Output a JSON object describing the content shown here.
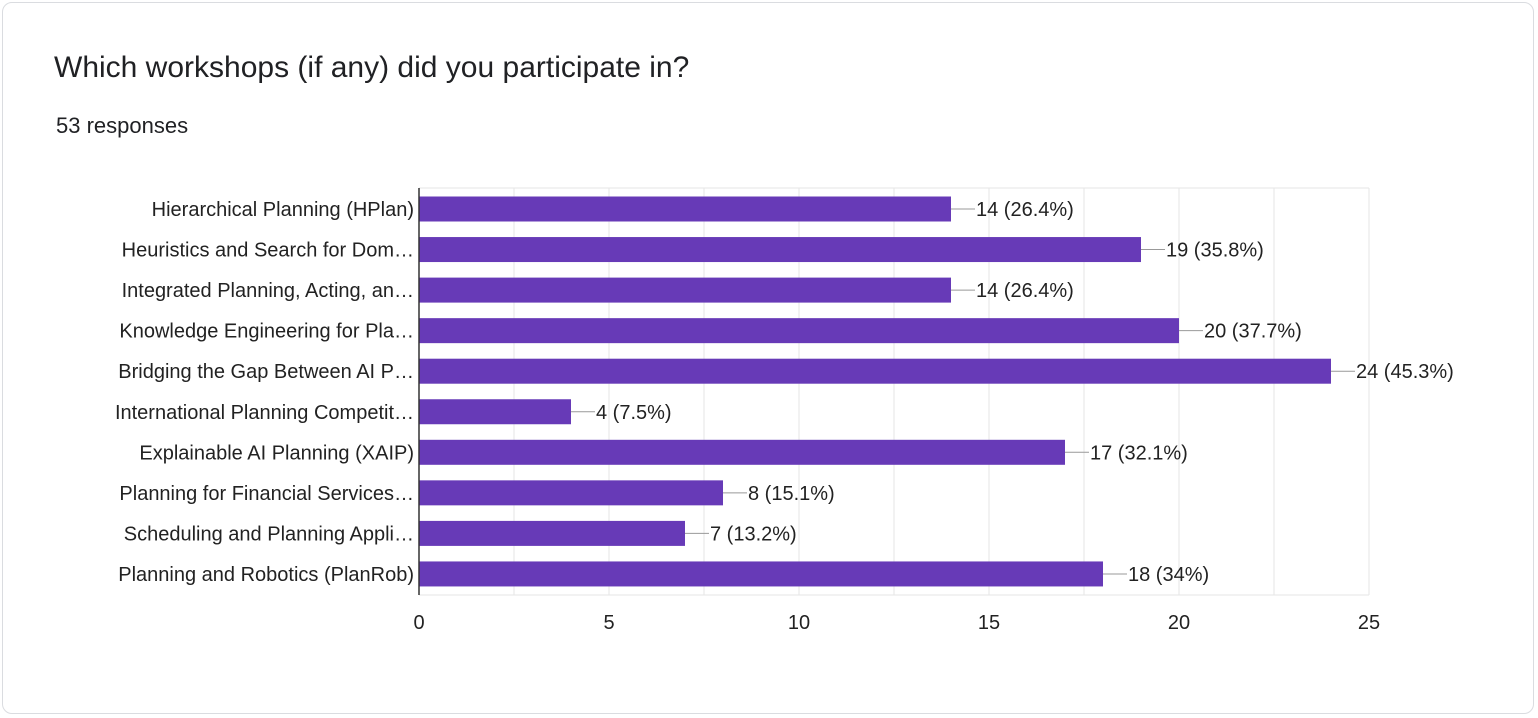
{
  "question": {
    "title": "Which workshops (if any) did you participate in?",
    "response_count": "53 responses"
  },
  "colors": {
    "bar": "#673ab7",
    "grid": "#e6e6e6",
    "axis": "#333333",
    "text": "#222222"
  },
  "chart_data": {
    "type": "bar",
    "orientation": "horizontal",
    "categories": [
      "Hierarchical Planning (HPlan)",
      "Heuristics and Search for Dom…",
      "Integrated Planning, Acting, an…",
      "Knowledge Engineering for Pla…",
      "Bridging the Gap Between AI P…",
      "International Planning Competit…",
      "Explainable AI Planning (XAIP)",
      "Planning for Financial Services…",
      "Scheduling and Planning Appli…",
      "Planning and Robotics (PlanRob)"
    ],
    "values": [
      14,
      19,
      14,
      20,
      24,
      4,
      17,
      8,
      7,
      18
    ],
    "data_labels": [
      "14 (26.4%)",
      "19 (35.8%)",
      "14 (26.4%)",
      "20 (37.7%)",
      "24 (45.3%)",
      "4 (7.5%)",
      "17 (32.1%)",
      "8 (15.1%)",
      "7 (13.2%)",
      "18 (34%)"
    ],
    "xlim": [
      0,
      25
    ],
    "x_ticks": [
      0,
      5,
      10,
      15,
      20,
      25
    ],
    "grid": true,
    "legend": "none"
  }
}
